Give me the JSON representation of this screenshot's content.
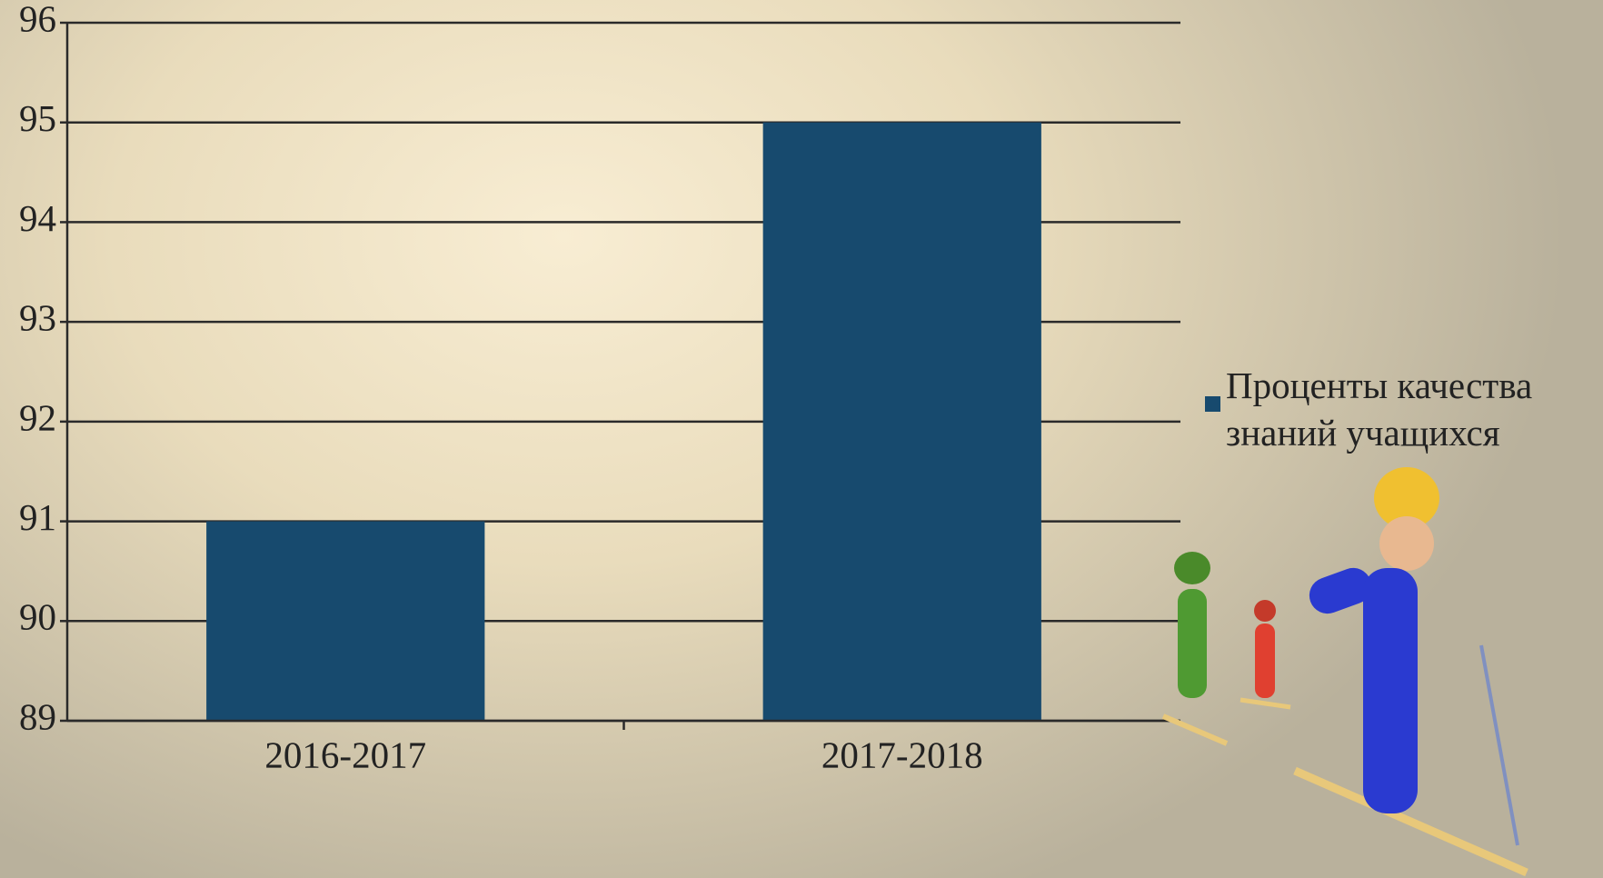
{
  "chart_data": {
    "type": "bar",
    "categories": [
      "2016-2017",
      "2017-2018"
    ],
    "series": [
      {
        "name": "Проценты качества знаний учащихся",
        "color": "#174a6e",
        "values": [
          91,
          95
        ]
      }
    ],
    "ylim": [
      89,
      96
    ],
    "yticks": [
      89,
      90,
      91,
      92,
      93,
      94,
      95,
      96
    ],
    "grid": true,
    "legend": "right"
  }
}
